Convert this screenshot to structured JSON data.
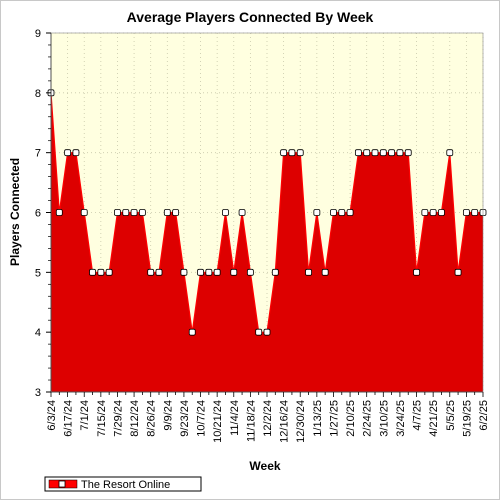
{
  "chart_data": {
    "type": "area",
    "title": "Average Players Connected By Week",
    "xlabel": "Week",
    "ylabel": "Players Connected",
    "ylim": [
      3,
      9
    ],
    "yticks": [
      3,
      4,
      5,
      6,
      7,
      8,
      9
    ],
    "grid": true,
    "legend_position": "bottom-left",
    "x_tick_labels": [
      "6/3/24",
      "6/17/24",
      "7/1/24",
      "7/15/24",
      "7/29/24",
      "8/12/24",
      "8/26/24",
      "9/9/24",
      "9/23/24",
      "10/7/24",
      "10/21/24",
      "11/4/24",
      "11/18/24",
      "12/2/24",
      "12/16/24",
      "12/30/24",
      "1/13/25",
      "1/27/25",
      "2/10/25",
      "2/24/25",
      "3/10/25",
      "3/24/25",
      "4/7/25",
      "4/21/25",
      "5/5/25",
      "5/19/25",
      "6/2/25"
    ],
    "x": [
      "6/3/24",
      "6/10/24",
      "6/17/24",
      "6/24/24",
      "7/1/24",
      "7/8/24",
      "7/15/24",
      "7/22/24",
      "7/29/24",
      "8/5/24",
      "8/12/24",
      "8/19/24",
      "8/26/24",
      "9/2/24",
      "9/9/24",
      "9/16/24",
      "9/23/24",
      "9/30/24",
      "10/7/24",
      "10/14/24",
      "10/21/24",
      "10/28/24",
      "11/4/24",
      "11/11/24",
      "11/18/24",
      "11/25/24",
      "12/2/24",
      "12/9/24",
      "12/16/24",
      "12/23/24",
      "12/30/24",
      "1/6/25",
      "1/13/25",
      "1/20/25",
      "1/27/25",
      "2/3/25",
      "2/10/25",
      "2/17/25",
      "2/24/25",
      "3/3/25",
      "3/10/25",
      "3/17/25",
      "3/24/25",
      "3/31/25",
      "4/7/25",
      "4/14/25",
      "4/21/25",
      "4/28/25",
      "5/5/25",
      "5/12/25",
      "5/19/25",
      "5/26/25",
      "6/2/25"
    ],
    "series": [
      {
        "name": "The Resort Online",
        "color": "#ff0000",
        "fill_color": "#dd0000",
        "values": [
          8,
          6,
          7,
          7,
          6,
          5,
          5,
          5,
          6,
          6,
          6,
          6,
          5,
          5,
          6,
          6,
          5,
          4,
          5,
          5,
          5,
          6,
          5,
          6,
          5,
          4,
          4,
          5,
          7,
          7,
          7,
          5,
          6,
          5,
          6,
          6,
          6,
          7,
          7,
          7,
          7,
          7,
          7,
          7,
          5,
          6,
          6,
          6,
          7,
          5,
          6,
          6,
          6
        ]
      }
    ],
    "plot_background": "#ffffe0"
  }
}
